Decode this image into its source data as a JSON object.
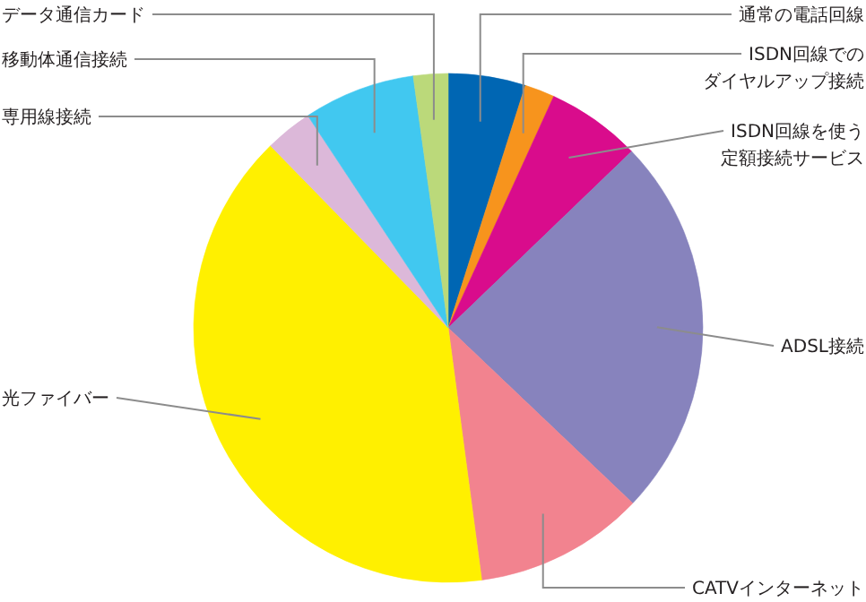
{
  "chart_data": {
    "type": "pie",
    "legend": false,
    "categories": [
      "通常の電話回線",
      "ISDN回線でのダイヤルアップ接続",
      "ISDN回線を使う定額接続サービス",
      "ADSL接続",
      "CATVインターネット",
      "光ファイバー",
      "専用線接続",
      "移動体通信接続",
      "データ通信カード"
    ],
    "values": [
      4.9,
      1.9,
      6.0,
      24.3,
      10.8,
      39.8,
      3.0,
      7.1,
      2.2
    ],
    "colors": [
      "#0066b3",
      "#f7941d",
      "#d90c8c",
      "#8783bd",
      "#f2838f",
      "#fff000",
      "#dcb8d9",
      "#41c8f0",
      "#bbd97a"
    ]
  }
}
